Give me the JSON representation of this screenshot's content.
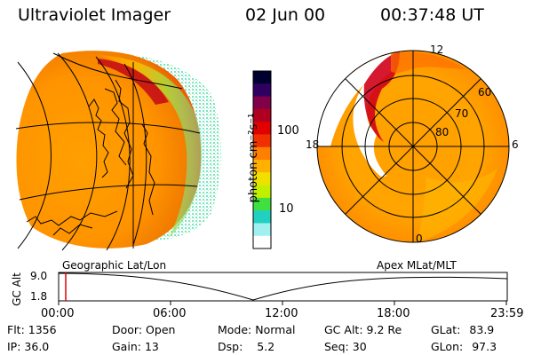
{
  "header": {
    "instrument": "Ultraviolet Imager",
    "date": "02 Jun 00",
    "time": "00:37:48 UT"
  },
  "colorbar": {
    "unit_label": "photon cm⁻²s⁻¹",
    "tick_labels": [
      "100",
      "10"
    ],
    "colors": [
      "#000030",
      "#300060",
      "#80004a",
      "#b00020",
      "#e00000",
      "#f03000",
      "#ff8000",
      "#ffb000",
      "#f0e000",
      "#c0f000",
      "#40e040",
      "#20d0c0",
      "#a0f0f0",
      "#ffffff"
    ]
  },
  "polar_plot": {
    "latitude_labels": [
      "60",
      "70",
      "80"
    ],
    "mlt_labels": [
      "12",
      "18",
      "6",
      "0"
    ]
  },
  "panel_labels": {
    "left": "Geographic Lat/Lon",
    "right": "Apex MLat/MLT"
  },
  "altitude_plot": {
    "ylabel": "GC Alt",
    "y_ticks": [
      "9.0",
      "1.8"
    ],
    "x_ticks": [
      "00:00",
      "06:00",
      "12:00",
      "18:00",
      "23:59"
    ],
    "current_time_marker_color": "#e00000"
  },
  "info": {
    "flt_label": "Flt:",
    "flt_value": "1356",
    "ip_label": "IP:",
    "ip_value": "36.0",
    "door_label": "Door:",
    "door_value": "Open",
    "gain_label": "Gain:",
    "gain_value": "13",
    "mode_label": "Mode:",
    "mode_value": "Normal",
    "dsp_label": "Dsp:",
    "dsp_value": "5.2",
    "gcalt_label": "GC Alt:",
    "gcalt_value": "9.2 Re",
    "seq_label": "Seq:",
    "seq_value": "30",
    "glat_label": "GLat:",
    "glat_value": "83.9",
    "glon_label": "GLon:",
    "glon_value": "97.3"
  }
}
